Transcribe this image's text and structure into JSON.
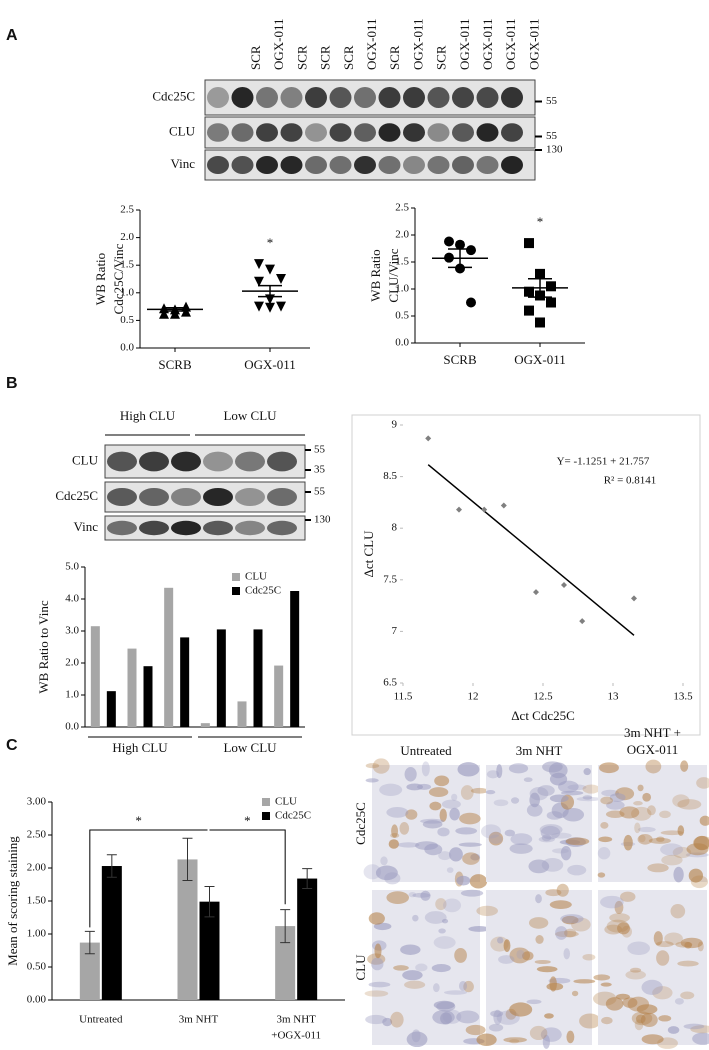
{
  "panel_labels": [
    "A",
    "B",
    "C"
  ],
  "blot_a": {
    "lanes": [
      "SCR",
      "OGX-011",
      "SCR",
      "SCR",
      "SCR",
      "OGX-011",
      "SCR",
      "OGX-011",
      "SCR",
      "OGX-011",
      "OGX-011",
      "OGX-011",
      "OGX-011"
    ],
    "rows": [
      {
        "label": "Cdc25C",
        "markers": [
          "55"
        ]
      },
      {
        "label": "CLU",
        "markers": [
          "55"
        ]
      },
      {
        "label": "Vinc",
        "markers": [
          "130"
        ]
      }
    ]
  },
  "blot_b": {
    "groups": [
      "High CLU",
      "Low CLU"
    ],
    "rows": [
      {
        "label": "CLU",
        "markers": [
          "55",
          "35"
        ]
      },
      {
        "label": "Cdc25C",
        "markers": [
          "55"
        ]
      },
      {
        "label": "Vinc",
        "markers": [
          "130"
        ]
      }
    ]
  },
  "ihc": {
    "columns": [
      [
        "Untreated"
      ],
      [
        "3m NHT"
      ],
      [
        "3m NHT +",
        "OGX-011"
      ]
    ],
    "rows": [
      "Cdc25C",
      "CLU"
    ]
  },
  "chart_data": [
    {
      "type": "dotplot",
      "y_label": [
        "WB Ratio",
        "Cdc25C/Vinc"
      ],
      "categories": [
        "SCRB",
        "OGX-011"
      ],
      "groups": [
        {
          "values": [
            0.72,
            0.7,
            0.66,
            0.62,
            0.62,
            0.75
          ],
          "marker": "triangle-up",
          "mean": 0.7,
          "sem": 0.03
        },
        {
          "values": [
            1.52,
            1.42,
            1.25,
            1.2,
            0.88,
            0.75,
            0.75,
            0.73
          ],
          "marker": "triangle-down",
          "mean": 1.03,
          "sem": 0.1
        }
      ],
      "annotation": "*",
      "ylim": [
        0,
        2.5
      ],
      "yticks": [
        {
          "value": 0,
          "label": "0.0"
        },
        0.5,
        {
          "value": 1,
          "label": "1.0"
        },
        1.5,
        {
          "value": 2,
          "label": "2.0"
        },
        2.5
      ]
    },
    {
      "type": "dotplot",
      "y_label": [
        "WB Ratio",
        "CLU/Vinc"
      ],
      "categories": [
        "SCRB",
        "OGX-011"
      ],
      "groups": [
        {
          "values": [
            1.88,
            1.82,
            1.72,
            1.58,
            1.38,
            0.75
          ],
          "marker": "circle",
          "mean": 1.57,
          "sem": 0.17
        },
        {
          "values": [
            1.85,
            1.28,
            1.05,
            0.95,
            0.88,
            0.75,
            0.6,
            0.38
          ],
          "marker": "square",
          "mean": 1.02,
          "sem": 0.17
        }
      ],
      "annotation": "*",
      "ylim": [
        0,
        2.5
      ],
      "yticks": [
        {
          "value": 0,
          "label": "0.0"
        },
        0.5,
        {
          "value": 1,
          "label": "1.0"
        },
        1.5,
        {
          "value": 2,
          "label": "2.0"
        },
        2.5
      ]
    },
    {
      "type": "bar",
      "y_label": "WB Ratio to Vinc",
      "categories": [
        null,
        null,
        null,
        null,
        null,
        null
      ],
      "group_labels": [
        "High CLU",
        "Low CLU"
      ],
      "series": [
        {
          "name": "CLU",
          "color": "#a6a6a6",
          "values": [
            3.15,
            2.45,
            4.35,
            0.12,
            0.8,
            1.92
          ]
        },
        {
          "name": "Cdc25C",
          "color": "#000000",
          "values": [
            1.12,
            1.9,
            2.8,
            3.05,
            3.05,
            4.25
          ]
        }
      ],
      "legend": "top-right",
      "ylim": [
        0,
        5
      ],
      "yticks": [
        {
          "value": 0,
          "label": "0.0"
        },
        {
          "value": 1,
          "label": "1.0"
        },
        {
          "value": 2,
          "label": "2.0"
        },
        {
          "value": 3,
          "label": "3.0"
        },
        {
          "value": 4,
          "label": "4.0"
        },
        {
          "value": 5,
          "label": "5.0"
        }
      ]
    },
    {
      "type": "scatter",
      "x_label": "Δct Cdc25C",
      "y_label": "Δct CLU",
      "x": [
        11.68,
        11.9,
        12.08,
        12.22,
        12.45,
        12.65,
        12.78,
        13.15
      ],
      "y": [
        8.87,
        8.18,
        8.18,
        8.22,
        7.38,
        7.45,
        7.1,
        7.32
      ],
      "color": "#808080",
      "trendline": {
        "slope": -1.1251,
        "intercept": 21.757
      },
      "annotations": [
        "Y= -1.1251 + 21.757",
        "R² = 0.8141"
      ],
      "xlim": [
        11.5,
        13.5
      ],
      "xticks": [
        11.5,
        12,
        12.5,
        13,
        13.5
      ],
      "ylim": [
        6.5,
        9
      ],
      "yticks": [
        6.5,
        7,
        7.5,
        8,
        8.5,
        9
      ]
    },
    {
      "type": "bar",
      "y_label": "Mean of scoring staining",
      "categories": [
        [
          "Untreated"
        ],
        [
          "3m NHT"
        ],
        [
          "3m NHT",
          "+OGX-011"
        ]
      ],
      "series": [
        {
          "name": "CLU",
          "color": "#a6a6a6",
          "values": [
            0.87,
            2.13,
            1.12
          ],
          "errors": [
            0.17,
            0.32,
            0.25
          ]
        },
        {
          "name": "Cdc25C",
          "color": "#000000",
          "values": [
            2.03,
            1.49,
            1.84
          ],
          "errors": [
            0.17,
            0.23,
            0.15
          ]
        }
      ],
      "annotations": [
        "*",
        "*"
      ],
      "legend": "top-right",
      "ylim": [
        0,
        3
      ],
      "yticks": [
        {
          "value": 0,
          "label": "0.00"
        },
        {
          "value": 0.5,
          "label": "0.50"
        },
        {
          "value": 1,
          "label": "1.00"
        },
        {
          "value": 1.5,
          "label": "1.50"
        },
        {
          "value": 2,
          "label": "2.00"
        },
        {
          "value": 2.5,
          "label": "2.50"
        },
        {
          "value": 3,
          "label": "3.00"
        }
      ]
    }
  ]
}
